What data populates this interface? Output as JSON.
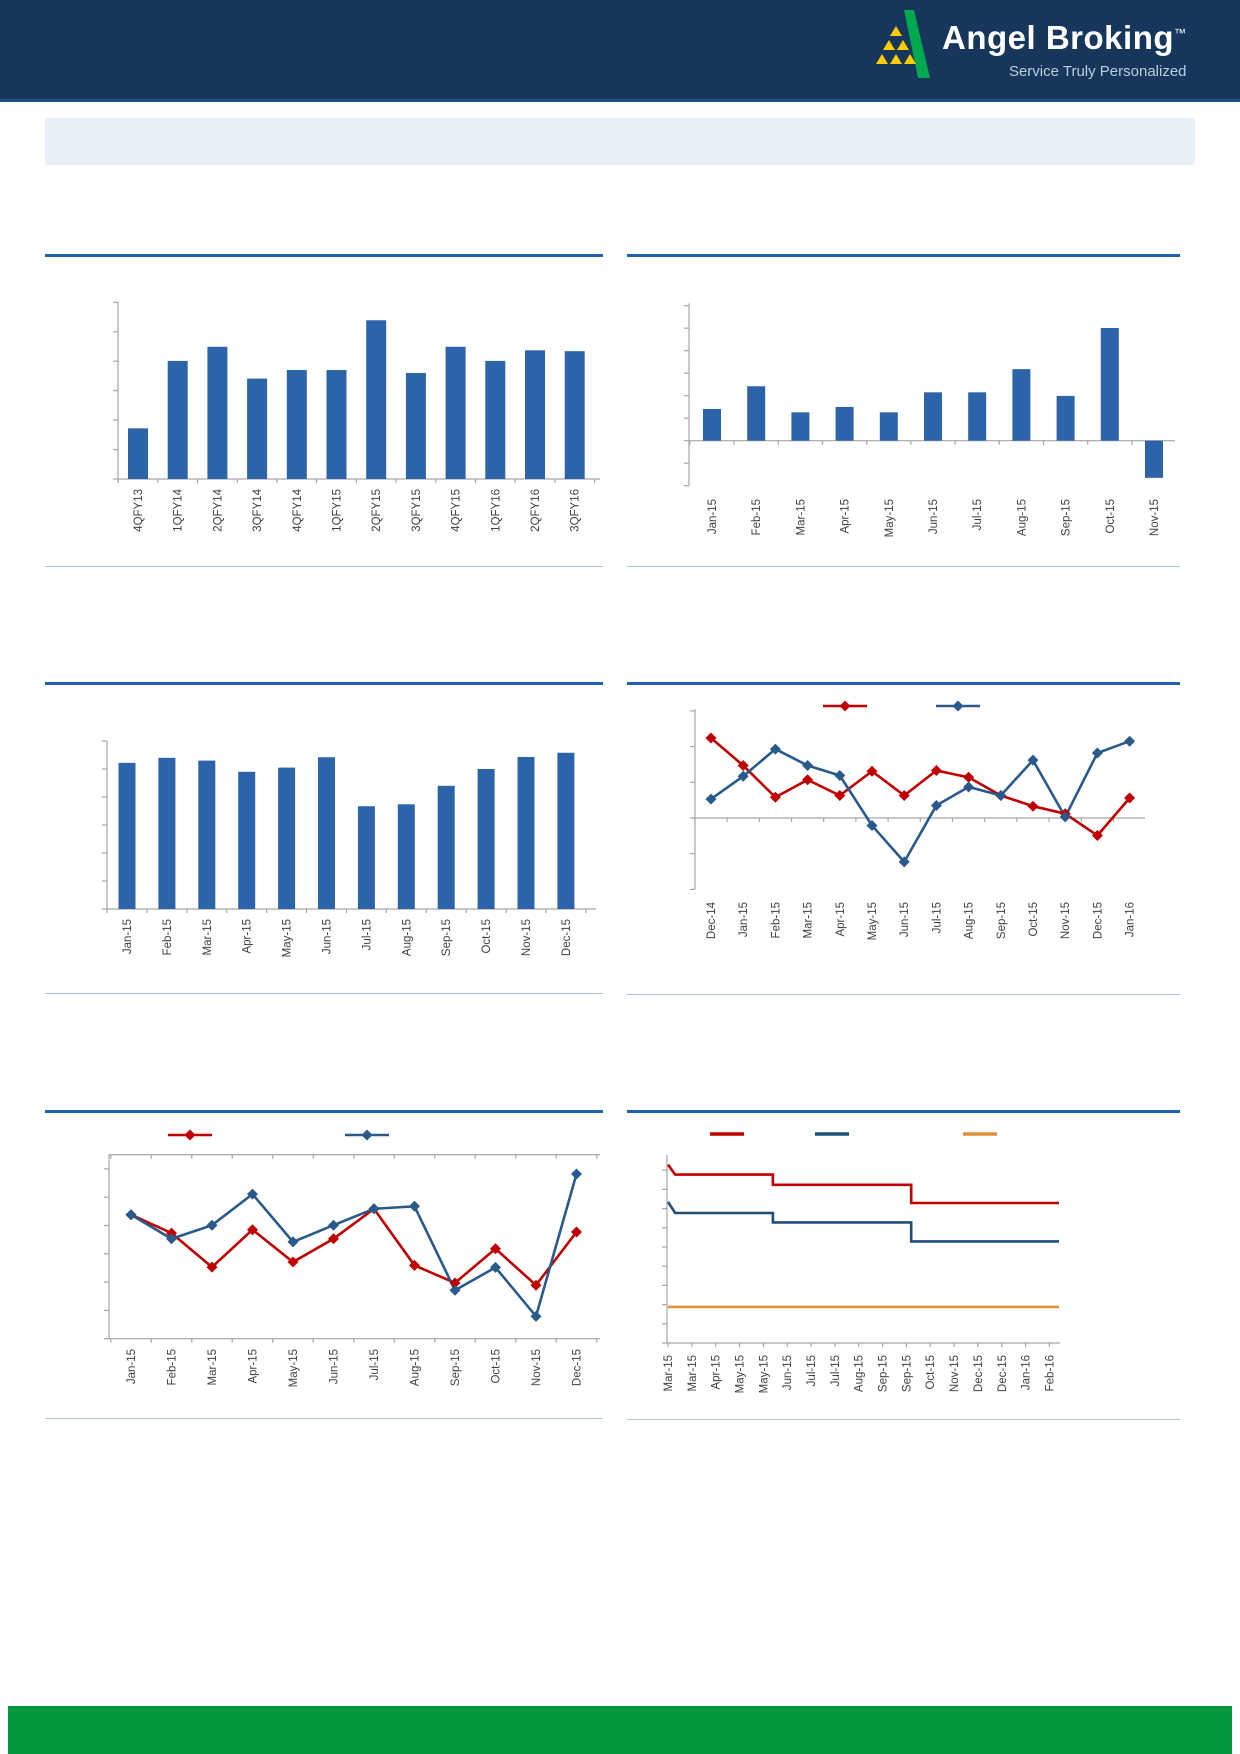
{
  "header": {
    "brand": "Angel Broking",
    "trademark": "™",
    "tagline": "Service Truly Personalized"
  },
  "colors": {
    "header_bg": "#16365c",
    "header_rule": "#1d5186",
    "banner_bg": "#e9eff7",
    "title_rule": "#1f61ae",
    "separator": "#a9c7e4",
    "bar_fill": "#2d64a9",
    "series_red": "#c00000",
    "series_blue": "#2a5a8c",
    "series_dark_blue": "#1f4e79",
    "series_orange": "#e0913c",
    "axis_gray": "#a6a6a6",
    "label_gray": "#3f3f3f",
    "footer_green": "#009a3c",
    "logo_green": "#00a84f",
    "logo_yellow": "#ffcc00"
  },
  "chart_data": [
    {
      "id": "c1",
      "type": "bar",
      "categories": [
        "4QFY13",
        "1QFY14",
        "2QFY14",
        "3QFY14",
        "4QFY14",
        "1QFY15",
        "2QFY15",
        "3QFY15",
        "4QFY15",
        "1QFY16",
        "2QFY16",
        "3QFY16"
      ],
      "values": [
        1.72,
        4.01,
        4.49,
        3.41,
        3.7,
        3.7,
        5.39,
        3.6,
        4.49,
        4.01,
        4.37,
        4.34
      ],
      "ylim": [
        0,
        6
      ],
      "color": "#2d64a9",
      "grid": false
    },
    {
      "id": "c2",
      "type": "bar",
      "categories": [
        "Jan-15",
        "Feb-15",
        "Mar-15",
        "Apr-15",
        "May-15",
        "Jun-15",
        "Jul-15",
        "Aug-15",
        "Sep-15",
        "Oct-15",
        "Nov-15"
      ],
      "values": [
        1.41,
        2.42,
        1.26,
        1.5,
        1.26,
        2.15,
        2.15,
        3.18,
        1.99,
        5.01,
        -1.65
      ],
      "ylim": [
        -2,
        6.1
      ],
      "color": "#2d64a9",
      "grid": false
    },
    {
      "id": "c3",
      "type": "bar",
      "categories": [
        "Jan-15",
        "Feb-15",
        "Mar-15",
        "Apr-15",
        "May-15",
        "Jun-15",
        "Jul-15",
        "Aug-15",
        "Sep-15",
        "Oct-15",
        "Nov-15",
        "Dec-15"
      ],
      "values": [
        5.22,
        5.4,
        5.3,
        4.9,
        5.05,
        5.42,
        3.67,
        3.74,
        4.4,
        5.0,
        5.43,
        5.58
      ],
      "ylim": [
        0,
        6
      ],
      "color": "#2d64a9",
      "grid": false
    },
    {
      "id": "c4",
      "type": "line",
      "categories": [
        "Dec-14",
        "Jan-15",
        "Feb-15",
        "Mar-15",
        "Apr-15",
        "May-15",
        "Jun-15",
        "Jul-15",
        "Aug-15",
        "Sep-15",
        "Oct-15",
        "Nov-15",
        "Dec-15",
        "Jan-16"
      ],
      "series": [
        {
          "name": "red-series",
          "color": "#c00000",
          "values": [
            2.24,
            1.47,
            0.58,
            1.07,
            0.63,
            1.31,
            0.63,
            1.33,
            1.14,
            0.63,
            0.33,
            0.12,
            -0.49,
            0.56
          ]
        },
        {
          "name": "blue-series",
          "color": "#2a5a8c",
          "values": [
            0.53,
            1.17,
            1.93,
            1.47,
            1.19,
            -0.21,
            -1.23,
            0.35,
            0.87,
            0.63,
            1.62,
            0.03,
            1.82,
            2.15
          ]
        }
      ],
      "ylim": [
        -2,
        3.05
      ],
      "legend_position": "top",
      "grid": false
    },
    {
      "id": "c5",
      "type": "line",
      "categories": [
        "Jan-15",
        "Feb-15",
        "Mar-15",
        "Apr-15",
        "May-15",
        "Jun-15",
        "Jul-15",
        "Aug-15",
        "Sep-15",
        "Oct-15",
        "Nov-15",
        "Dec-15"
      ],
      "series": [
        {
          "name": "red-series",
          "color": "#c00000",
          "values": [
            4.38,
            3.73,
            2.53,
            3.85,
            2.71,
            3.53,
            4.59,
            2.59,
            1.97,
            3.18,
            1.89,
            3.77
          ]
        },
        {
          "name": "blue-series",
          "color": "#2a5a8c",
          "values": [
            4.38,
            3.53,
            4.01,
            5.11,
            3.42,
            4.01,
            4.59,
            4.68,
            1.71,
            2.52,
            0.79,
            5.82
          ]
        }
      ],
      "ylim": [
        0,
        6.5
      ],
      "legend_position": "top",
      "grid": false
    },
    {
      "id": "c6",
      "type": "step",
      "categories": [
        "Mar-15",
        "Mar-15",
        "Apr-15",
        "May-15",
        "May-15",
        "Jun-15",
        "Jul-15",
        "Jul-15",
        "Aug-15",
        "Sep-15",
        "Sep-15",
        "Oct-15",
        "Nov-15",
        "Dec-15",
        "Dec-15",
        "Jan-16",
        "Feb-16"
      ],
      "series": [
        {
          "name": "red-step",
          "color": "#c00000",
          "points": [
            [
              0,
              9.29
            ],
            [
              0.3,
              8.77
            ],
            [
              4.4,
              8.77
            ],
            [
              4.4,
              8.24
            ],
            [
              10.2,
              8.24
            ],
            [
              10.2,
              7.29
            ],
            [
              16.4,
              7.29
            ]
          ]
        },
        {
          "name": "blue-step",
          "color": "#1f4e79",
          "points": [
            [
              0,
              7.35
            ],
            [
              0.3,
              6.77
            ],
            [
              4.4,
              6.77
            ],
            [
              4.4,
              6.28
            ],
            [
              10.2,
              6.28
            ],
            [
              10.2,
              5.29
            ],
            [
              16.4,
              5.29
            ]
          ]
        },
        {
          "name": "orange-step",
          "color": "#e0913c",
          "points": [
            [
              0,
              1.88
            ],
            [
              16.4,
              1.88
            ]
          ]
        }
      ],
      "ylim": [
        0,
        9.8
      ],
      "legend_position": "top",
      "grid": false
    }
  ]
}
